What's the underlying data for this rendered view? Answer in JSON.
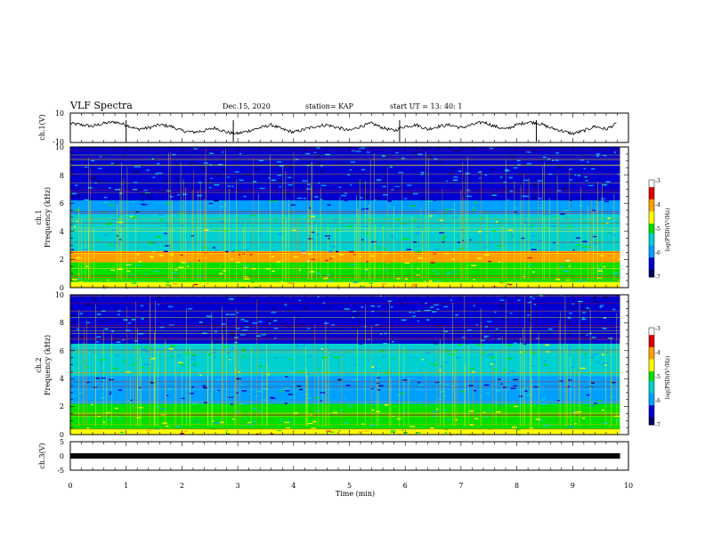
{
  "header": {
    "title": "VLF Spectra",
    "date": "Dec.15, 2020",
    "station": "station= KAP",
    "start": "start  UT =  13: 40: 1"
  },
  "colors": {
    "cmap": [
      "#ffffff",
      "#dc0000",
      "#ffa000",
      "#ffff00",
      "#00e000",
      "#00d0d0",
      "#00a0ff",
      "#0000d0",
      "#000060"
    ]
  },
  "chart_data": [
    {
      "type": "line",
      "id": "ch1-waveform",
      "ylabel": "ch.1(V)",
      "ylim": [
        -10,
        10
      ],
      "ytick_labels": [
        "10",
        "-10"
      ],
      "xlim": [
        0,
        10
      ],
      "x": [
        0,
        0.2,
        0.4,
        0.6,
        0.8,
        1.0,
        1.2,
        1.4,
        1.6,
        1.8,
        2.0,
        2.2,
        2.4,
        2.6,
        2.8,
        3.0,
        3.2,
        3.4,
        3.6,
        3.8,
        4.0,
        4.2,
        4.4,
        4.6,
        4.8,
        5.0,
        5.2,
        5.4,
        5.6,
        5.8,
        6.0,
        6.2,
        6.4,
        6.6,
        6.8,
        7.0,
        7.2,
        7.4,
        7.6,
        7.8,
        8.0,
        8.2,
        8.4,
        8.6,
        8.8,
        9.0,
        9.2,
        9.4,
        9.6,
        9.8
      ],
      "y": [
        3,
        2,
        1,
        3,
        4,
        2,
        -1,
        0,
        2,
        1,
        -2,
        -3,
        -2,
        0,
        -3,
        -4,
        -2,
        0,
        2,
        -1,
        -3,
        -1,
        1,
        2,
        0,
        -2,
        1,
        3,
        0,
        -2,
        1,
        2,
        -1,
        1,
        2,
        0,
        2,
        4,
        1,
        -1,
        2,
        4,
        3,
        0,
        -2,
        -4,
        -2,
        1,
        -1,
        3
      ]
    },
    {
      "type": "heatmap",
      "id": "ch1-spectrogram",
      "ylabel": "ch.1\nFrequency (kHz)",
      "xlim": [
        0,
        10
      ],
      "ylim": [
        0,
        10
      ],
      "ytick_labels": [
        "0",
        "2",
        "4",
        "6",
        "8",
        "10"
      ],
      "colorbar": {
        "label": "log(PSD)(V²/Hz)",
        "range": [
          -7,
          -3
        ],
        "tick_labels": [
          "-3",
          "-4",
          "-5",
          "-6",
          "-7"
        ]
      },
      "bands": [
        {
          "f": [
            0.0,
            0.4
          ],
          "level": -4.5
        },
        {
          "f": [
            0.4,
            1.8
          ],
          "level": -5.0
        },
        {
          "f": [
            1.8,
            2.6
          ],
          "level": -4.0
        },
        {
          "f": [
            2.6,
            4.0
          ],
          "level": -5.7
        },
        {
          "f": [
            4.0,
            5.2
          ],
          "level": -5.4
        },
        {
          "f": [
            5.2,
            6.2
          ],
          "level": -5.8
        },
        {
          "f": [
            6.2,
            10.0
          ],
          "level": -6.4
        }
      ]
    },
    {
      "type": "heatmap",
      "id": "ch2-spectrogram",
      "ylabel": "ch.2\nFrequency (kHz)",
      "xlim": [
        0,
        10
      ],
      "ylim": [
        0,
        10
      ],
      "ytick_labels": [
        "0",
        "2",
        "4",
        "6",
        "8",
        "10"
      ],
      "colorbar": {
        "label": "log(PSD)(V²/Hz)",
        "range": [
          -7,
          -3
        ],
        "tick_labels": [
          "-3",
          "-4",
          "-5",
          "-6",
          "-7"
        ]
      },
      "bands": [
        {
          "f": [
            0.0,
            0.4
          ],
          "level": -4.4
        },
        {
          "f": [
            0.4,
            2.2
          ],
          "level": -5.1
        },
        {
          "f": [
            2.2,
            3.2
          ],
          "level": -5.9
        },
        {
          "f": [
            3.2,
            4.2
          ],
          "level": -6.2
        },
        {
          "f": [
            4.2,
            6.5
          ],
          "level": -5.4
        },
        {
          "f": [
            6.5,
            10.0
          ],
          "level": -6.3
        }
      ]
    },
    {
      "type": "line",
      "id": "ch3-signal",
      "ylabel": "ch.3(V)",
      "ylim": [
        -5,
        5
      ],
      "ytick_labels": [
        "5",
        "0",
        "-5"
      ],
      "xlim": [
        0,
        10
      ],
      "x": [
        0,
        9.85
      ],
      "y": [
        0,
        0
      ]
    }
  ],
  "xaxis": {
    "label": "Time  (min)",
    "tick_labels": [
      "0",
      "1",
      "2",
      "3",
      "4",
      "5",
      "6",
      "7",
      "8",
      "9",
      "10"
    ]
  }
}
